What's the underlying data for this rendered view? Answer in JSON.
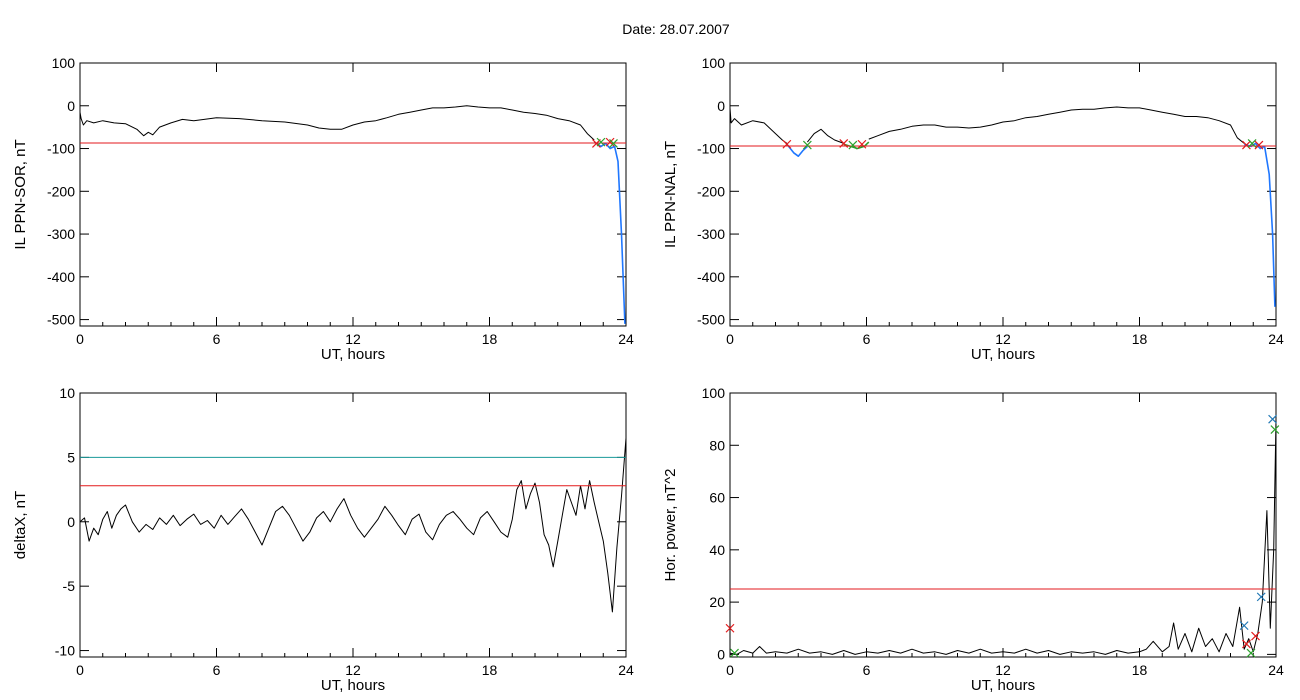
{
  "title": "Date:  28.07.2007",
  "colors": {
    "trace": "#000000",
    "threshold_red": "#e31a1c",
    "threshold_teal": "#1a9a9a",
    "marker_red": "#e31a1c",
    "marker_green": "#2ca02c",
    "marker_blue": "#1f77b4",
    "segment_blue": "#1f77ff",
    "segment_green": "#2ca02c"
  },
  "chart_data": [
    {
      "type": "line",
      "panel": "top-left",
      "xlabel": "UT, hours",
      "ylabel": "IL PPN-SOR, nT",
      "xlim": [
        0,
        24
      ],
      "ylim": [
        -515,
        100
      ],
      "xticks": [
        0,
        6,
        12,
        18,
        24
      ],
      "yticks": [
        100,
        0,
        -100,
        -200,
        -300,
        -400,
        -500
      ],
      "series": [
        {
          "kind": "trace",
          "color": "trace",
          "x": [
            0,
            0.05,
            0.15,
            0.3,
            0.6,
            1.0,
            1.5,
            2.0,
            2.5,
            2.8,
            3.0,
            3.2,
            3.5,
            4.0,
            4.5,
            5.0,
            6.0,
            7.0,
            8.0,
            9.0,
            10.0,
            10.5,
            11.0,
            11.5,
            12.0,
            12.5,
            13.0,
            13.5,
            14.0,
            14.5,
            15.0,
            15.5,
            16.0,
            16.5,
            17.0,
            17.5,
            18.0,
            18.5,
            19.0,
            19.5,
            20.0,
            20.5,
            21.0,
            21.5,
            22.0,
            22.3,
            22.6
          ],
          "y": [
            -15,
            -30,
            -45,
            -35,
            -40,
            -35,
            -40,
            -42,
            -55,
            -70,
            -62,
            -68,
            -50,
            -40,
            -32,
            -35,
            -28,
            -30,
            -35,
            -38,
            -45,
            -52,
            -55,
            -55,
            -45,
            -38,
            -35,
            -28,
            -20,
            -15,
            -10,
            -5,
            -5,
            -3,
            0,
            -3,
            -5,
            -5,
            -10,
            -15,
            -18,
            -22,
            -30,
            -35,
            -45,
            -65,
            -80
          ]
        },
        {
          "kind": "segment",
          "color": "segment_blue",
          "x": [
            22.6,
            22.9,
            23.1,
            23.3,
            23.5,
            23.65,
            23.8,
            23.95
          ],
          "y": [
            -85,
            -95,
            -88,
            -100,
            -95,
            -130,
            -300,
            -510
          ]
        },
        {
          "kind": "threshold",
          "color": "threshold_red",
          "y": -87
        }
      ],
      "markers": [
        {
          "x": 22.7,
          "y": -88,
          "color": "marker_red"
        },
        {
          "x": 22.9,
          "y": -85,
          "color": "marker_green"
        },
        {
          "x": 23.3,
          "y": -85,
          "color": "marker_red"
        },
        {
          "x": 23.45,
          "y": -88,
          "color": "marker_green"
        }
      ]
    },
    {
      "type": "line",
      "panel": "top-right",
      "xlabel": "UT, hours",
      "ylabel": "IL PPN-NAL, nT",
      "xlim": [
        0,
        24
      ],
      "ylim": [
        -515,
        100
      ],
      "xticks": [
        0,
        6,
        12,
        18,
        24
      ],
      "yticks": [
        100,
        0,
        -100,
        -200,
        -300,
        -400,
        -500
      ],
      "series": [
        {
          "kind": "trace",
          "color": "trace",
          "x": [
            0,
            0.05,
            0.2,
            0.5,
            1.0,
            1.5,
            2.0,
            2.3,
            2.5
          ],
          "y": [
            -5,
            -40,
            -30,
            -45,
            -35,
            -40,
            -65,
            -80,
            -88
          ]
        },
        {
          "kind": "segment",
          "color": "segment_blue",
          "x": [
            2.5,
            2.8,
            3.0,
            3.2,
            3.4
          ],
          "y": [
            -90,
            -110,
            -118,
            -105,
            -95
          ]
        },
        {
          "kind": "trace",
          "color": "trace",
          "x": [
            3.4,
            3.7,
            4.0,
            4.3,
            4.6,
            5.0
          ],
          "y": [
            -85,
            -65,
            -55,
            -70,
            -80,
            -88
          ]
        },
        {
          "kind": "segment",
          "color": "segment_green",
          "x": [
            5.0,
            5.3,
            5.6,
            5.9,
            6.1
          ],
          "y": [
            -90,
            -95,
            -100,
            -95,
            -85
          ]
        },
        {
          "kind": "trace",
          "color": "trace",
          "x": [
            6.1,
            6.5,
            7.0,
            7.5,
            8.0,
            8.5,
            9.0,
            9.5,
            10.0,
            10.5,
            11.0,
            11.5,
            12.0,
            12.5,
            13.0,
            13.5,
            14.0,
            14.5,
            15.0,
            15.5,
            16.0,
            16.5,
            17.0,
            17.5,
            18.0,
            18.5,
            19.0,
            19.5,
            20.0,
            20.5,
            21.0,
            21.5,
            22.0,
            22.3,
            22.6
          ],
          "y": [
            -78,
            -70,
            -60,
            -55,
            -48,
            -45,
            -45,
            -50,
            -50,
            -52,
            -50,
            -45,
            -38,
            -35,
            -28,
            -25,
            -20,
            -15,
            -10,
            -8,
            -8,
            -5,
            -3,
            -5,
            -5,
            -10,
            -15,
            -20,
            -25,
            -25,
            -28,
            -35,
            -45,
            -75,
            -88
          ]
        },
        {
          "kind": "segment",
          "color": "segment_blue",
          "x": [
            22.6,
            22.9,
            23.1,
            23.3,
            23.5,
            23.7,
            23.85,
            23.95
          ],
          "y": [
            -90,
            -95,
            -88,
            -100,
            -95,
            -160,
            -300,
            -470
          ]
        },
        {
          "kind": "threshold",
          "color": "threshold_red",
          "y": -94
        }
      ],
      "markers": [
        {
          "x": 2.5,
          "y": -90,
          "color": "marker_red"
        },
        {
          "x": 3.4,
          "y": -92,
          "color": "marker_green"
        },
        {
          "x": 5.0,
          "y": -88,
          "color": "marker_red"
        },
        {
          "x": 5.4,
          "y": -92,
          "color": "marker_green"
        },
        {
          "x": 5.8,
          "y": -90,
          "color": "marker_red"
        },
        {
          "x": 22.7,
          "y": -92,
          "color": "marker_red"
        },
        {
          "x": 22.95,
          "y": -88,
          "color": "marker_green"
        },
        {
          "x": 23.25,
          "y": -92,
          "color": "marker_red"
        }
      ]
    },
    {
      "type": "line",
      "panel": "bottom-left",
      "xlabel": "UT, hours",
      "ylabel": "deltaX, nT",
      "xlim": [
        0,
        24
      ],
      "ylim": [
        -10.5,
        10
      ],
      "xticks": [
        0,
        6,
        12,
        18,
        24
      ],
      "yticks": [
        10,
        5,
        0,
        -5,
        -10
      ],
      "series": [
        {
          "kind": "trace",
          "color": "trace",
          "x": [
            0,
            0.2,
            0.4,
            0.6,
            0.8,
            1.0,
            1.2,
            1.4,
            1.6,
            1.8,
            2.0,
            2.3,
            2.6,
            2.9,
            3.2,
            3.5,
            3.8,
            4.1,
            4.4,
            4.7,
            5.0,
            5.3,
            5.6,
            5.9,
            6.2,
            6.5,
            6.8,
            7.1,
            7.4,
            7.7,
            8.0,
            8.3,
            8.6,
            8.9,
            9.2,
            9.5,
            9.8,
            10.1,
            10.4,
            10.7,
            11.0,
            11.3,
            11.6,
            11.9,
            12.2,
            12.5,
            12.8,
            13.1,
            13.4,
            13.7,
            14.0,
            14.3,
            14.6,
            14.9,
            15.2,
            15.5,
            15.8,
            16.1,
            16.4,
            16.7,
            17.0,
            17.3,
            17.6,
            17.9,
            18.2,
            18.5,
            18.8,
            19.0,
            19.2,
            19.4,
            19.6,
            19.8,
            20.0,
            20.2,
            20.4,
            20.6,
            20.8,
            21.0,
            21.2,
            21.4,
            21.6,
            21.8,
            22.0,
            22.2,
            22.4,
            22.6,
            22.8,
            23.0,
            23.2,
            23.4,
            23.6,
            23.8,
            24.0
          ],
          "y": [
            0,
            0.3,
            -1.5,
            -0.5,
            -1.0,
            0.2,
            0.8,
            -0.5,
            0.5,
            1.0,
            1.3,
            0,
            -0.8,
            -0.2,
            -0.6,
            0.3,
            -0.2,
            0.5,
            -0.3,
            0.2,
            0.6,
            -0.2,
            0.1,
            -0.5,
            0.5,
            -0.2,
            0.4,
            1.0,
            0.2,
            -0.8,
            -1.8,
            -0.5,
            0.8,
            1.2,
            0.5,
            -0.5,
            -1.5,
            -0.8,
            0.3,
            0.8,
            0,
            1.0,
            1.8,
            0.5,
            -0.5,
            -1.2,
            -0.5,
            0.2,
            1.2,
            0.5,
            -0.3,
            -1.0,
            0.2,
            0.6,
            -0.8,
            -1.4,
            -0.2,
            0.5,
            0.8,
            0.2,
            -0.5,
            -1.0,
            0.3,
            0.8,
            0,
            -0.8,
            -1.2,
            0.2,
            2.5,
            3.2,
            1.0,
            2.2,
            3.0,
            1.5,
            -1.0,
            -1.8,
            -3.5,
            -1.5,
            0.5,
            2.5,
            1.5,
            0.5,
            2.8,
            1.0,
            3.2,
            1.5,
            0,
            -1.5,
            -4.0,
            -7.0,
            -2.0,
            2.0,
            6.5
          ]
        },
        {
          "kind": "threshold",
          "color": "threshold_teal",
          "y": 5
        },
        {
          "kind": "threshold",
          "color": "threshold_red",
          "y": 2.8
        }
      ],
      "markers": []
    },
    {
      "type": "line",
      "panel": "bottom-right",
      "xlabel": "UT, hours",
      "ylabel": "Hor. power, nT^2",
      "xlim": [
        0,
        24
      ],
      "ylim": [
        -1,
        100
      ],
      "xticks": [
        0,
        6,
        12,
        18,
        24
      ],
      "yticks": [
        100,
        80,
        60,
        40,
        20,
        0
      ],
      "series": [
        {
          "kind": "trace",
          "color": "trace",
          "x": [
            0,
            0.3,
            0.6,
            1.0,
            1.3,
            1.6,
            2.0,
            2.5,
            3.0,
            3.5,
            4.0,
            4.5,
            5.0,
            5.5,
            6.0,
            6.5,
            7.0,
            7.5,
            8.0,
            8.5,
            9.0,
            9.5,
            10.0,
            10.5,
            11.0,
            11.5,
            12.0,
            12.5,
            13.0,
            13.5,
            14.0,
            14.5,
            15.0,
            15.5,
            16.0,
            16.5,
            17.0,
            17.5,
            18.0,
            18.3,
            18.6,
            19.0,
            19.3,
            19.5,
            19.7,
            20.0,
            20.3,
            20.6,
            20.9,
            21.2,
            21.5,
            21.8,
            22.1,
            22.4,
            22.6,
            22.8,
            23.0,
            23.2,
            23.4,
            23.6,
            23.75,
            23.9,
            24.0
          ],
          "y": [
            0.5,
            0,
            1.5,
            0.5,
            3,
            0.5,
            1,
            0.5,
            2,
            0.5,
            1,
            0,
            1.5,
            0,
            1,
            0.5,
            1.5,
            0.5,
            2,
            0.5,
            1,
            0,
            1.5,
            0.5,
            2,
            0.5,
            1,
            0.5,
            2,
            0.5,
            1.5,
            0,
            1,
            0.5,
            1,
            0,
            1.5,
            0.5,
            1,
            2,
            5,
            1,
            3,
            12,
            2,
            8,
            1,
            10,
            3,
            6,
            1,
            8,
            3,
            18,
            2,
            6,
            1,
            8,
            20,
            55,
            10,
            40,
            90
          ]
        },
        {
          "kind": "threshold",
          "color": "threshold_red",
          "y": 25
        }
      ],
      "markers": [
        {
          "x": 0,
          "y": 10,
          "color": "marker_red"
        },
        {
          "x": 0.2,
          "y": 0.5,
          "color": "marker_green"
        },
        {
          "x": 22.6,
          "y": 11,
          "color": "marker_blue"
        },
        {
          "x": 22.7,
          "y": 4,
          "color": "marker_red"
        },
        {
          "x": 22.9,
          "y": 0.5,
          "color": "marker_green"
        },
        {
          "x": 23.1,
          "y": 7,
          "color": "marker_red"
        },
        {
          "x": 23.35,
          "y": 22,
          "color": "marker_blue"
        },
        {
          "x": 23.85,
          "y": 90,
          "color": "marker_blue"
        },
        {
          "x": 23.95,
          "y": 86,
          "color": "marker_green"
        }
      ]
    }
  ]
}
